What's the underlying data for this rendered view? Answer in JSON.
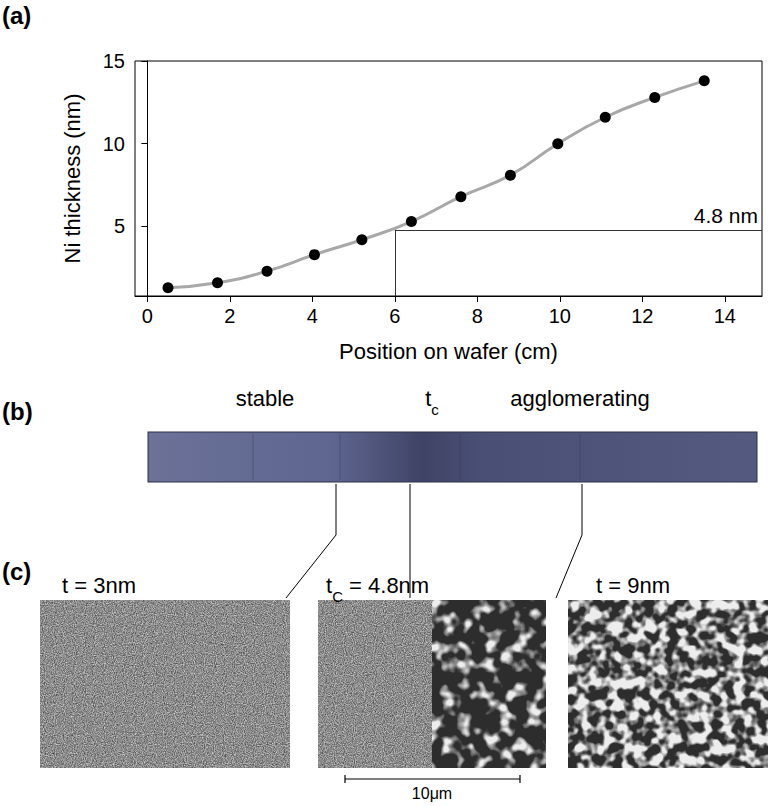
{
  "panel_labels": [
    "(a)",
    "(b)",
    "(c)"
  ],
  "chart_data": {
    "type": "line",
    "x": [
      0.5,
      1.7,
      2.9,
      4.05,
      5.2,
      6.4,
      7.6,
      8.8,
      9.95,
      11.1,
      12.3,
      13.5
    ],
    "values": [
      1.3,
      1.6,
      2.3,
      3.3,
      4.2,
      5.3,
      6.8,
      8.1,
      10.0,
      11.6,
      12.8,
      13.8
    ],
    "color": "#a8a8a8",
    "marker": "circle",
    "xlabel": "Position on wafer (cm)",
    "ylabel": "Ni thickness (nm)",
    "xlim": [
      -0.3,
      14.9
    ],
    "xticks": [
      0,
      2,
      4,
      6,
      8,
      10,
      12,
      14
    ],
    "ylim": [
      0.8,
      15
    ],
    "yticks": [
      5,
      10,
      15
    ],
    "grid": false,
    "annotation": {
      "text": "4.8 nm",
      "x": 6,
      "y": 4.8
    }
  },
  "strip": {
    "labels": [
      [
        {
          "text": "stable"
        }
      ],
      [
        {
          "text": "t"
        },
        {
          "text": "c",
          "sub": true
        }
      ],
      [
        {
          "text": "agglomerating"
        }
      ]
    ]
  },
  "micrographs": [
    {
      "label": [
        {
          "text": "t = 3nm"
        }
      ]
    },
    {
      "label": [
        {
          "text": "t"
        },
        {
          "text": "C",
          "sub": true
        },
        {
          "text": " = 4.8nm"
        }
      ]
    },
    {
      "label": [
        {
          "text": "t = 9nm"
        }
      ]
    }
  ],
  "scale_bar": {
    "label": "10μm"
  }
}
